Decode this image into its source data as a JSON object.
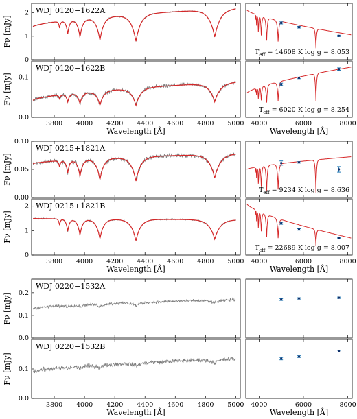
{
  "chart_data": {
    "type": "line",
    "colors": {
      "observed": "#7f7f7f",
      "model": "#d62728",
      "photometry": "#1f77b4"
    },
    "panel_groups": [
      {
        "left_xlabel": "Wavelength [Å]",
        "right_xlabel": "Wavelength [Å]"
      },
      {
        "left_xlabel": "Wavelength [Å]",
        "right_xlabel": "Wavelength [Å]"
      },
      {
        "left_xlabel": "Wavelength [Å]",
        "right_xlabel": "Wavelength [Å]"
      }
    ],
    "x_ticks_left": [
      "3800",
      "4000",
      "4200",
      "4400",
      "4600",
      "4800",
      "5000"
    ],
    "x_ticks_right": [
      "4000",
      "6000",
      "8000"
    ],
    "panels": [
      {
        "name": "WDJ 0120−1622A",
        "ylabel": "Fν [mJy]",
        "ylim": [
          0,
          2.4
        ],
        "yticks": [
          "0",
          "1",
          "2"
        ],
        "continuum": [
          1.4,
          2.2
        ],
        "noise": 0.02,
        "teff": "14608",
        "logg": "8.053",
        "has_model": true,
        "sed_continuum": [
          2.3,
          1.15
        ],
        "sed_ylim": [
          0,
          2.6
        ],
        "photometry": [
          {
            "x": 5000,
            "y": 1.7,
            "err": 0.05
          },
          {
            "x": 5800,
            "y": 1.5,
            "err": 0.04
          },
          {
            "x": 7600,
            "y": 1.1,
            "err": 0.03
          }
        ]
      },
      {
        "name": "WDJ 0120−1622B",
        "ylabel": "Fν [mJy]",
        "ylim": [
          0,
          0.14
        ],
        "yticks": [
          "0.0",
          "0.1"
        ],
        "continuum": [
          0.042,
          0.088
        ],
        "noise": 0.004,
        "teff": "6020",
        "logg": "8.254",
        "has_model": true,
        "sed_continuum": [
          0.06,
          0.125
        ],
        "sed_ylim": [
          0,
          0.14
        ],
        "photometry": [
          {
            "x": 5000,
            "y": 0.082,
            "err": 0.003
          },
          {
            "x": 5800,
            "y": 0.098,
            "err": 0.002
          },
          {
            "x": 7600,
            "y": 0.12,
            "err": 0.003
          }
        ]
      },
      {
        "name": "WDJ 0215+1821A",
        "ylabel": "Fν [mJy]",
        "ylim": [
          0,
          0.1
        ],
        "yticks": [
          "0.00",
          "0.05",
          "0.10"
        ],
        "continuum": [
          0.06,
          0.078
        ],
        "noise": 0.003,
        "teff": "9234",
        "logg": "8.636",
        "has_model": true,
        "sed_continuum": [
          0.06,
          0.078
        ],
        "sed_ylim": [
          0.02,
          0.1
        ],
        "photometry": [
          {
            "x": 5000,
            "y": 0.069,
            "err": 0.003
          },
          {
            "x": 5800,
            "y": 0.07,
            "err": 0.001
          },
          {
            "x": 7600,
            "y": 0.06,
            "err": 0.004
          }
        ]
      },
      {
        "name": "WDJ 0215+1821B",
        "ylabel": "Fν [mJy]",
        "ylim": [
          0,
          2.3
        ],
        "yticks": [
          "0",
          "1",
          "2"
        ],
        "continuum": [
          1.5,
          1.45
        ],
        "noise": 0.02,
        "teff": "22689",
        "logg": "8.007",
        "has_model": true,
        "sed_continuum": [
          2.1,
          0.7
        ],
        "sed_ylim": [
          0,
          2.3
        ],
        "photometry": [
          {
            "x": 5000,
            "y": 1.3,
            "err": 0.04
          },
          {
            "x": 5800,
            "y": 1.05,
            "err": 0.03
          },
          {
            "x": 7600,
            "y": 0.7,
            "err": 0.02
          }
        ]
      },
      {
        "name": "WDJ 0220−1532A",
        "ylabel": "Fν [mJy]",
        "ylim": [
          0,
          0.26
        ],
        "yticks": [
          "0.0",
          "0.1",
          "0.2"
        ],
        "continuum": [
          0.13,
          0.17
        ],
        "noise": 0.005,
        "has_model": false,
        "sed_ylim": [
          0,
          0.26
        ],
        "photometry": [
          {
            "x": 5000,
            "y": 0.17,
            "err": 0.004
          },
          {
            "x": 5800,
            "y": 0.175,
            "err": 0.003
          },
          {
            "x": 7600,
            "y": 0.178,
            "err": 0.003
          }
        ]
      },
      {
        "name": "WDJ 0220−1532B",
        "ylabel": "Fν [mJy]",
        "ylim": [
          0,
          0.2
        ],
        "yticks": [
          "0.0",
          "0.1"
        ],
        "continuum": [
          0.09,
          0.135
        ],
        "noise": 0.006,
        "has_model": false,
        "sed_ylim": [
          0,
          0.2
        ],
        "photometry": [
          {
            "x": 5000,
            "y": 0.135,
            "err": 0.004
          },
          {
            "x": 5800,
            "y": 0.142,
            "err": 0.003
          },
          {
            "x": 7600,
            "y": 0.16,
            "err": 0.003
          }
        ]
      }
    ],
    "lines": [
      3835,
      3889,
      3970,
      4102,
      4340,
      4861,
      6563
    ],
    "left_xlim": [
      3650,
      5030
    ],
    "right_xlim": [
      3400,
      8200
    ]
  }
}
